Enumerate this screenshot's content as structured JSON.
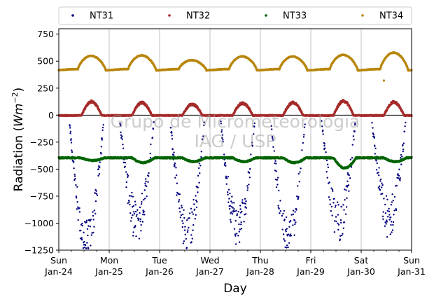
{
  "chart_data": {
    "type": "scatter",
    "title": "",
    "xlabel": "Day",
    "ylabel": "Radiation ($Wm^{-2}$)",
    "ylim": [
      -1250,
      800
    ],
    "xlim_days": [
      0,
      7
    ],
    "y_ticks": [
      -1250,
      -1000,
      -750,
      -500,
      -250,
      0,
      250,
      500,
      750
    ],
    "x_ticks": [
      {
        "day": 0,
        "line1": "Sun",
        "line2": "Jan-24"
      },
      {
        "day": 1,
        "line1": "Mon",
        "line2": "Jan-25"
      },
      {
        "day": 2,
        "line1": "Tue",
        "line2": "Jan-26"
      },
      {
        "day": 3,
        "line1": "Wed",
        "line2": "Jan-27"
      },
      {
        "day": 4,
        "line1": "Thu",
        "line2": "Jan-28"
      },
      {
        "day": 5,
        "line1": "Fri",
        "line2": "Jan-29"
      },
      {
        "day": 6,
        "line1": "Sat",
        "line2": "Jan-30"
      },
      {
        "day": 7,
        "line1": "Sun",
        "line2": "Jan-31"
      }
    ],
    "grid": "vertical",
    "legend_position": "top",
    "watermark": {
      "line1": "Grupo de Micrometeorologia",
      "line2": "IAG / USP"
    },
    "series": [
      {
        "name": "NT31",
        "color": "#00007f",
        "baseline": -5,
        "daily_peak": [
          -1230,
          -1050,
          -1160,
          -1080,
          -1180,
          -1040,
          -1010
        ],
        "noise": 180,
        "marker": "dot"
      },
      {
        "name": "NT32",
        "color": "#a52a2a",
        "baseline": -3,
        "daily_peak": [
          125,
          115,
          100,
          110,
          115,
          130,
          120
        ],
        "noise": 15,
        "marker": "dot"
      },
      {
        "name": "NT33",
        "color": "#006400",
        "baseline": -395,
        "daily_peak": [
          -420,
          -440,
          -430,
          -430,
          -440,
          -490,
          -430
        ],
        "noise": 12,
        "marker": "dot"
      },
      {
        "name": "NT34",
        "color": "#b8860b",
        "baseline": 420,
        "daily_peak": [
          550,
          555,
          510,
          545,
          545,
          560,
          580
        ],
        "noise": 6,
        "marker": "dot",
        "outlier": {
          "day": 6.45,
          "y": 320
        }
      }
    ]
  }
}
